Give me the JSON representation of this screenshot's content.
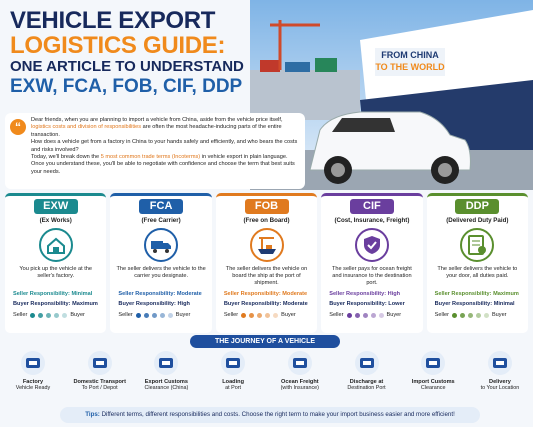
{
  "header": {
    "title_line1": "VEHICLE EXPORT",
    "title_line2": "LOGISTICS GUIDE:",
    "title_line3": "ONE ARTICLE TO UNDERSTAND",
    "title_line4": "EXW, FCA, FOB, CIF, DDP",
    "ship_line1": "FROM CHINA",
    "ship_line2": "TO THE WORLD"
  },
  "intro": {
    "paragraphs": [
      [
        "Dear friends, when you are planning to import a vehicle from China, aside from the vehicle price itself, ",
        "logistics costs and division of responsibilities",
        " are often the most headache-inducing parts of the entire transaction."
      ],
      [
        "How does a vehicle get from a factory in China to your hands safely and efficiently, and who bears the costs and risks involved?"
      ],
      [
        "Today, we'll break down the ",
        "5 most common trade terms (Incoterms)",
        " in vehicle export in plain language. Once you understand these, you'll be able to negotiate with confidence and choose the term that best suits your needs."
      ]
    ]
  },
  "terms": [
    {
      "code": "EXW",
      "full": "(Ex Works)",
      "desc": "You pick up the vehicle at the seller's factory.",
      "seller_label": "Seller Responsibility:",
      "seller_value": "Minimal",
      "buyer_label": "Buyer Responsibility:",
      "buyer_value": "Maximum",
      "scale_left": "Seller",
      "scale_right": "Buyer"
    },
    {
      "code": "FCA",
      "full": "(Free Carrier)",
      "desc": "The seller delivers the vehicle to the carrier you designate.",
      "seller_label": "Seller Responsibility:",
      "seller_value": "Moderate",
      "buyer_label": "Buyer Responsibility:",
      "buyer_value": "High",
      "scale_left": "Seller",
      "scale_right": "Buyer"
    },
    {
      "code": "FOB",
      "full": "(Free on Board)",
      "desc": "The seller delivers the vehicle on board the ship at the port of shipment.",
      "seller_label": "Seller Responsibility:",
      "seller_value": "Moderate",
      "buyer_label": "Buyer Responsibility:",
      "buyer_value": "Moderate",
      "scale_left": "Seller",
      "scale_right": "Buyer"
    },
    {
      "code": "CIF",
      "full": "(Cost, Insurance, Freight)",
      "desc": "The seller pays for ocean freight and insurance to the destination port.",
      "seller_label": "Seller Responsibility:",
      "seller_value": "High",
      "buyer_label": "Buyer Responsibility:",
      "buyer_value": "Lower",
      "scale_left": "Seller",
      "scale_right": "Buyer"
    },
    {
      "code": "DDP",
      "full": "(Delivered Duty Paid)",
      "desc": "The seller delivers the vehicle to your door, all duties paid.",
      "seller_label": "Seller Responsibility:",
      "seller_value": "Maximum",
      "buyer_label": "Buyer Responsibility:",
      "buyer_value": "Minimal",
      "scale_left": "Seller",
      "scale_right": "Buyer"
    }
  ],
  "journey": {
    "title": "THE JOURNEY OF A VEHICLE",
    "steps": [
      {
        "line1": "Factory",
        "line2": "Vehicle Ready"
      },
      {
        "line1": "Domestic Transport",
        "line2": "To Port / Depot"
      },
      {
        "line1": "Export Customs",
        "line2": "Clearance (China)"
      },
      {
        "line1": "Loading",
        "line2": "at Port"
      },
      {
        "line1": "Ocean Freight",
        "line2": "(with Insurance)"
      },
      {
        "line1": "Discharge at",
        "line2": "Destination Port"
      },
      {
        "line1": "Import Customs",
        "line2": "Clearance"
      },
      {
        "line1": "Delivery",
        "line2": "to Your Location"
      }
    ]
  },
  "tips": {
    "label": "Tips:",
    "text": "Different terms, different responsibilities and costs. Choose the right term to make your import business easier and more efficient!"
  }
}
